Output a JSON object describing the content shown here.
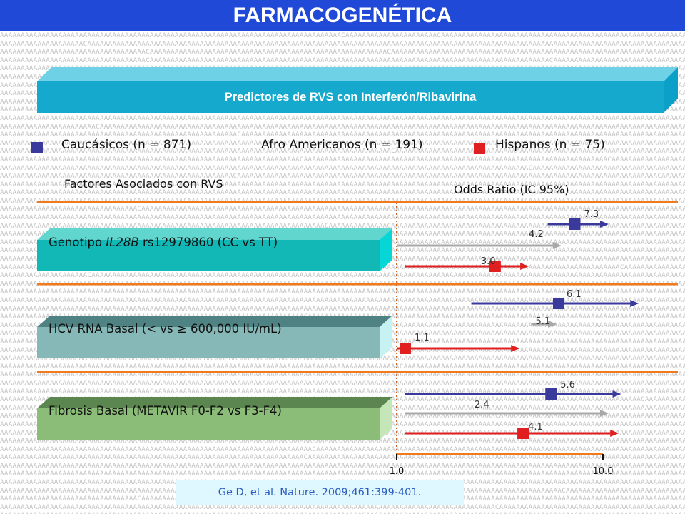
{
  "slide": {
    "title": "FARMACOGENÉTICA",
    "subtitle": "Predictores de RVS con Interferón/Ribavirina",
    "citation": "Ge D, et al. Nature. 2009;461:399-401.",
    "colors": {
      "caucasicos": "#3a3a9c",
      "afro": "#a8a8a8",
      "hispanos": "#e02020",
      "title_bg": "#1f49d6"
    }
  },
  "legend": [
    {
      "label": "Caucásicos (n = 871)",
      "color": "#3a3a9c"
    },
    {
      "label": "Afro Americanos (n = 191)",
      "color": "#a8a8a8"
    },
    {
      "label": "Hispanos (n = 75)",
      "color": "#e02020"
    }
  ],
  "headers": {
    "left": "Factores Asociados con RVS",
    "right": "Odds Ratio (IC 95%)"
  },
  "factors": [
    {
      "prefix": "Genotipo ",
      "italic": "IL28B",
      "suffix": " rs12979860 (CC vs TT)"
    },
    {
      "prefix": "HCV RNA Basal (< vs ≥ 600,000 IU/mL)",
      "italic": "",
      "suffix": ""
    },
    {
      "prefix": "Fibrosis Basal  (METAVIR F0-F2 vs F3-F4)",
      "italic": "",
      "suffix": ""
    }
  ],
  "axis": {
    "ticks": [
      {
        "value": 1,
        "label": "1.0"
      },
      {
        "value": 10,
        "label": "10.0"
      }
    ]
  },
  "chart_data": {
    "type": "forest",
    "title": "Odds Ratio (IC 95%)",
    "scale": "log",
    "xlim": [
      1,
      10
    ],
    "reference_line": 1,
    "series": [
      {
        "name": "Caucásicos (n = 871)",
        "color": "#3a3a9c",
        "values": [
          {
            "factor": 0,
            "or": 7.3,
            "lo": 5.4,
            "hi": 10.0
          },
          {
            "factor": 1,
            "or": 6.1,
            "lo": 2.3,
            "hi": 14.0
          },
          {
            "factor": 2,
            "or": 5.6,
            "lo": 1.1,
            "hi": 11.5
          }
        ]
      },
      {
        "name": "Afro Americanos (n = 191)",
        "color": "#a8a8a8",
        "values": [
          {
            "factor": 0,
            "or": 4.2,
            "lo": 1.0,
            "hi": 5.9
          },
          {
            "factor": 1,
            "or": 5.1,
            "lo": 4.5,
            "hi": 5.6
          },
          {
            "factor": 2,
            "or": 2.4,
            "lo": 1.1,
            "hi": 10.0
          }
        ]
      },
      {
        "name": "Hispanos (n = 75)",
        "color": "#e02020",
        "values": [
          {
            "factor": 0,
            "or": 3.0,
            "lo": 1.1,
            "hi": 4.1
          },
          {
            "factor": 1,
            "or": 1.1,
            "lo": 1.0,
            "hi": 3.7
          },
          {
            "factor": 2,
            "or": 4.1,
            "lo": 1.1,
            "hi": 11.2
          }
        ]
      }
    ],
    "value_labels": [
      [
        "7.3",
        "4.2",
        "3.0"
      ],
      [
        "6.1",
        "5.1",
        "1.1"
      ],
      [
        "5.6",
        "2.4",
        "4.1"
      ]
    ]
  }
}
